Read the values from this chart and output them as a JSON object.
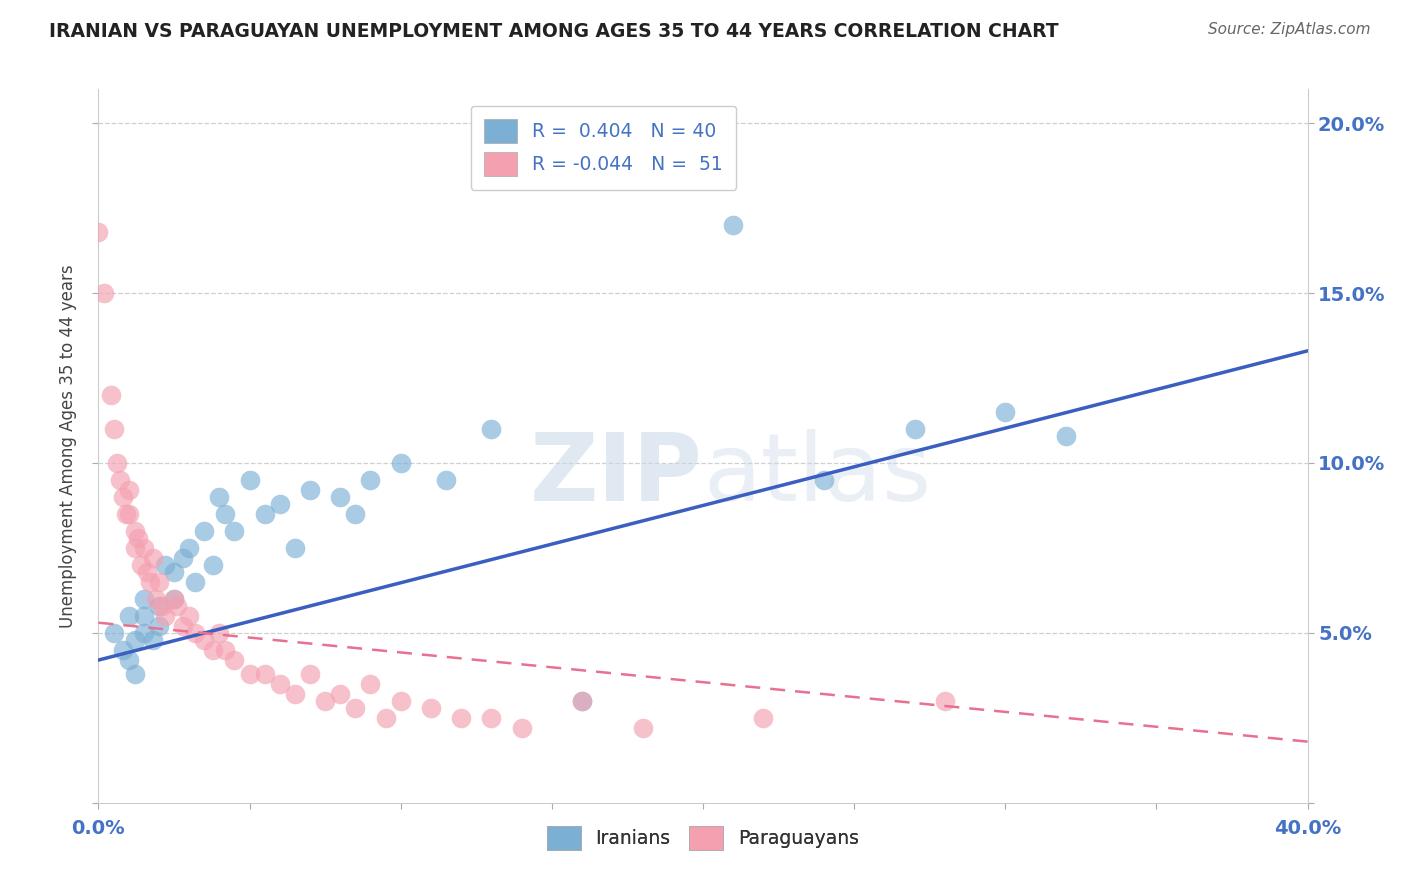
{
  "title": "IRANIAN VS PARAGUAYAN UNEMPLOYMENT AMONG AGES 35 TO 44 YEARS CORRELATION CHART",
  "source_text": "Source: ZipAtlas.com",
  "ylabel": "Unemployment Among Ages 35 to 44 years",
  "xlim": [
    0.0,
    0.4
  ],
  "ylim": [
    0.0,
    0.21
  ],
  "x_ticks": [
    0.0,
    0.05,
    0.1,
    0.15,
    0.2,
    0.25,
    0.3,
    0.35,
    0.4
  ],
  "y_ticks": [
    0.0,
    0.05,
    0.1,
    0.15,
    0.2
  ],
  "y_tick_labels": [
    "",
    "5.0%",
    "10.0%",
    "15.0%",
    "20.0%"
  ],
  "iranian_color": "#7bafd4",
  "paraguayan_color": "#f4a0b0",
  "iranian_line_color": "#3b5fc0",
  "paraguayan_line_color": "#e87090",
  "legend_R_iranian": "0.404",
  "legend_N_iranian": "40",
  "legend_R_paraguayan": "-0.044",
  "legend_N_paraguayan": "51",
  "watermark_zip": "ZIP",
  "watermark_atlas": "atlas",
  "background_color": "#ffffff",
  "iranians_x": [
    0.005,
    0.008,
    0.01,
    0.012,
    0.01,
    0.012,
    0.015,
    0.015,
    0.015,
    0.018,
    0.02,
    0.02,
    0.022,
    0.025,
    0.025,
    0.028,
    0.03,
    0.032,
    0.035,
    0.038,
    0.04,
    0.042,
    0.045,
    0.05,
    0.055,
    0.06,
    0.065,
    0.07,
    0.08,
    0.085,
    0.09,
    0.1,
    0.115,
    0.13,
    0.16,
    0.21,
    0.24,
    0.27,
    0.3,
    0.32
  ],
  "iranians_y": [
    0.05,
    0.045,
    0.055,
    0.048,
    0.042,
    0.038,
    0.06,
    0.055,
    0.05,
    0.048,
    0.058,
    0.052,
    0.07,
    0.068,
    0.06,
    0.072,
    0.075,
    0.065,
    0.08,
    0.07,
    0.09,
    0.085,
    0.08,
    0.095,
    0.085,
    0.088,
    0.075,
    0.092,
    0.09,
    0.085,
    0.095,
    0.1,
    0.095,
    0.11,
    0.03,
    0.17,
    0.095,
    0.11,
    0.115,
    0.108
  ],
  "paraguayans_x": [
    0.0,
    0.002,
    0.004,
    0.005,
    0.006,
    0.007,
    0.008,
    0.009,
    0.01,
    0.01,
    0.012,
    0.012,
    0.013,
    0.014,
    0.015,
    0.016,
    0.017,
    0.018,
    0.019,
    0.02,
    0.021,
    0.022,
    0.025,
    0.026,
    0.028,
    0.03,
    0.032,
    0.035,
    0.038,
    0.04,
    0.042,
    0.045,
    0.05,
    0.055,
    0.06,
    0.065,
    0.07,
    0.075,
    0.08,
    0.085,
    0.09,
    0.095,
    0.1,
    0.11,
    0.12,
    0.13,
    0.14,
    0.16,
    0.18,
    0.22,
    0.28
  ],
  "paraguayans_y": [
    0.168,
    0.15,
    0.12,
    0.11,
    0.1,
    0.095,
    0.09,
    0.085,
    0.092,
    0.085,
    0.08,
    0.075,
    0.078,
    0.07,
    0.075,
    0.068,
    0.065,
    0.072,
    0.06,
    0.065,
    0.058,
    0.055,
    0.06,
    0.058,
    0.052,
    0.055,
    0.05,
    0.048,
    0.045,
    0.05,
    0.045,
    0.042,
    0.038,
    0.038,
    0.035,
    0.032,
    0.038,
    0.03,
    0.032,
    0.028,
    0.035,
    0.025,
    0.03,
    0.028,
    0.025,
    0.025,
    0.022,
    0.03,
    0.022,
    0.025,
    0.03
  ],
  "iranian_line_x0": 0.0,
  "iranian_line_y0": 0.042,
  "iranian_line_x1": 0.4,
  "iranian_line_y1": 0.133,
  "paraguayan_line_x0": 0.0,
  "paraguayan_line_y0": 0.053,
  "paraguayan_line_x1": 0.4,
  "paraguayan_line_y1": 0.018
}
